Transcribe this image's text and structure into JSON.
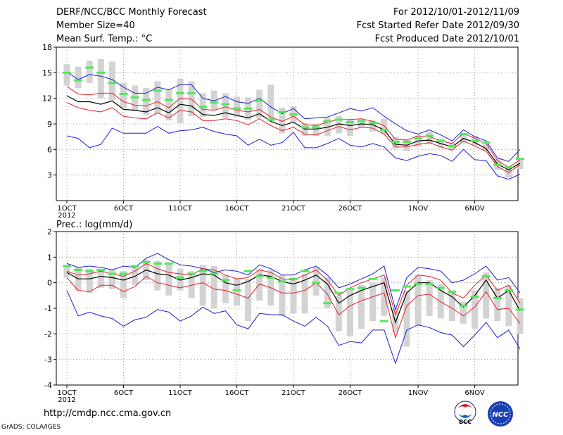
{
  "header": {
    "title": "DERF/NCC/BCC Monthly Forecast",
    "member_size": "Member Size=40",
    "variable": "Mean Surf. Temp.: °C",
    "forecast_period": "For 2012/10/01-2012/11/09",
    "fcst_started": "Fcst Started Refer Date 2012/09/30",
    "fcst_produced": "Fcst Produced Date 2012/10/01"
  },
  "footer": {
    "url": "http://cmdp.ncc.cma.gov.cn",
    "credit": "GrADS: COLA/IGES",
    "logo_bcc": "BCC",
    "logo_ncc": "NCC"
  },
  "colors": {
    "box": "#d3d3d3",
    "median": "#52e85a",
    "mean": "#000000",
    "inner": "#e8202a",
    "outer": "#1c1cd8",
    "grid": "#8a8a8a"
  },
  "chart_data": [
    {
      "type": "line",
      "title": "Mean Surf. Temp.: °C",
      "xlim": [
        0,
        39
      ],
      "ylim": [
        0,
        18
      ],
      "yticks": [
        3,
        6,
        9,
        12,
        15,
        18
      ],
      "xticks": [
        {
          "day": 0,
          "label": "1OCT",
          "sub": "2012"
        },
        {
          "day": 5,
          "label": "6OCT"
        },
        {
          "day": 10,
          "label": "11OCT"
        },
        {
          "day": 15,
          "label": "16OCT"
        },
        {
          "day": 20,
          "label": "21OCT"
        },
        {
          "day": 25,
          "label": "26OCT"
        },
        {
          "day": 31,
          "label": "1NOV"
        },
        {
          "day": 36,
          "label": "6NOV"
        }
      ],
      "series": [
        {
          "name": "outer_upper",
          "values": [
            15.1,
            14.2,
            14.8,
            14.6,
            14.2,
            13.3,
            12.6,
            12.6,
            13.3,
            13.0,
            13.6,
            13.6,
            12.0,
            11.7,
            12.2,
            11.6,
            11.4,
            12.0,
            11.0,
            10.2,
            10.8,
            9.6,
            9.7,
            9.8,
            10.3,
            10.8,
            10.5,
            10.9,
            9.9,
            9.0,
            8.2,
            7.8,
            8.3,
            7.7,
            7.0,
            8.3,
            7.5,
            7.0,
            5.0,
            4.6,
            6.0
          ]
        },
        {
          "name": "inner_upper",
          "values": [
            13.4,
            12.5,
            12.4,
            12.6,
            12.6,
            11.6,
            11.2,
            11.1,
            11.6,
            10.9,
            12.0,
            11.9,
            10.7,
            10.6,
            11.0,
            10.6,
            10.4,
            10.7,
            9.8,
            9.3,
            9.9,
            8.9,
            8.8,
            9.2,
            9.5,
            9.5,
            9.6,
            9.3,
            8.8,
            7.2,
            7.1,
            7.6,
            7.5,
            7.0,
            6.7,
            7.9,
            7.3,
            6.7,
            4.7,
            3.9,
            4.8
          ]
        },
        {
          "name": "mean",
          "values": [
            12.3,
            11.6,
            11.6,
            11.3,
            11.7,
            10.7,
            10.6,
            10.4,
            10.9,
            10.3,
            11.3,
            11.1,
            10.1,
            10.0,
            10.3,
            10.0,
            9.7,
            10.2,
            9.3,
            8.8,
            9.2,
            8.4,
            8.4,
            8.6,
            9.0,
            8.8,
            9.0,
            8.9,
            8.3,
            6.6,
            6.5,
            7.0,
            7.1,
            6.7,
            6.3,
            7.3,
            6.8,
            6.1,
            4.3,
            3.6,
            4.4
          ]
        },
        {
          "name": "inner_lower",
          "values": [
            11.5,
            10.9,
            10.6,
            10.4,
            10.9,
            9.9,
            9.7,
            9.6,
            10.3,
            9.7,
            10.6,
            10.4,
            9.4,
            9.4,
            9.6,
            9.4,
            8.9,
            9.6,
            8.8,
            8.2,
            8.6,
            7.8,
            7.7,
            8.2,
            8.7,
            8.3,
            8.6,
            8.5,
            7.8,
            6.3,
            6.3,
            6.6,
            6.8,
            6.3,
            5.9,
            7.0,
            6.4,
            5.8,
            4.0,
            3.3,
            4.2
          ]
        },
        {
          "name": "outer_lower",
          "values": [
            7.6,
            7.3,
            6.2,
            6.6,
            8.5,
            7.9,
            7.9,
            7.9,
            8.7,
            7.9,
            8.2,
            8.3,
            8.6,
            8.1,
            7.8,
            7.6,
            6.5,
            7.2,
            6.5,
            6.8,
            8.0,
            6.2,
            6.2,
            6.7,
            7.3,
            6.5,
            6.3,
            6.7,
            6.3,
            5.0,
            4.7,
            5.2,
            5.5,
            5.3,
            4.6,
            6.0,
            4.8,
            4.7,
            2.9,
            2.5,
            3.1
          ]
        }
      ],
      "boxes": [
        [
          13.5,
          16.0
        ],
        [
          13.2,
          15.7
        ],
        [
          13.8,
          16.4
        ],
        [
          12.0,
          16.6
        ],
        [
          11.8,
          16.3
        ],
        [
          10.9,
          13.8
        ],
        [
          10.5,
          13.5
        ],
        [
          10.0,
          13.2
        ],
        [
          10.2,
          14.0
        ],
        [
          9.4,
          13.0
        ],
        [
          9.1,
          14.3
        ],
        [
          9.9,
          14.0
        ],
        [
          9.8,
          12.6
        ],
        [
          10.6,
          12.9
        ],
        [
          9.7,
          12.6
        ],
        [
          9.8,
          12.2
        ],
        [
          9.5,
          12.1
        ],
        [
          9.7,
          13.0
        ],
        [
          9.3,
          13.6
        ],
        [
          7.9,
          10.9
        ],
        [
          9.2,
          11.1
        ],
        [
          7.6,
          9.1
        ],
        [
          7.6,
          9.0
        ],
        [
          7.6,
          9.7
        ],
        [
          7.9,
          9.9
        ],
        [
          7.6,
          9.6
        ],
        [
          8.6,
          9.6
        ],
        [
          8.1,
          9.4
        ],
        [
          7.8,
          9.6
        ],
        [
          6.1,
          7.5
        ],
        [
          5.8,
          7.2
        ],
        [
          6.3,
          7.6
        ],
        [
          6.6,
          8.1
        ],
        [
          6.2,
          7.3
        ],
        [
          5.9,
          6.8
        ],
        [
          6.7,
          7.9
        ],
        [
          6.5,
          7.6
        ],
        [
          5.8,
          6.6
        ],
        [
          3.6,
          4.9
        ],
        [
          2.7,
          4.0
        ],
        [
          3.7,
          5.0
        ]
      ],
      "medians": [
        15.0,
        14.1,
        15.6,
        15.0,
        13.8,
        12.5,
        12.1,
        11.8,
        12.9,
        11.8,
        12.6,
        12.6,
        11.0,
        11.5,
        11.3,
        10.8,
        10.8,
        11.7,
        9.5,
        10.4,
        10.1,
        8.6,
        8.6,
        9.3,
        9.5,
        9.2,
        9.3,
        9.1,
        8.3,
        6.9,
        6.9,
        7.3,
        7.6,
        7.0,
        6.4,
        7.8,
        7.0,
        6.8,
        4.2,
        3.9,
        4.9
      ]
    },
    {
      "type": "line",
      "title": "Prec.: log(mm/d)",
      "xlim": [
        0,
        39
      ],
      "ylim": [
        -4,
        2
      ],
      "yticks": [
        -4,
        -3,
        -2,
        -1,
        0,
        1,
        2
      ],
      "xticks": [
        {
          "day": 0,
          "label": "1OCT",
          "sub": "2012"
        },
        {
          "day": 5,
          "label": "6OCT"
        },
        {
          "day": 10,
          "label": "11OCT"
        },
        {
          "day": 15,
          "label": "16OCT"
        },
        {
          "day": 20,
          "label": "21OCT"
        },
        {
          "day": 25,
          "label": "26OCT"
        },
        {
          "day": 31,
          "label": "1NOV"
        },
        {
          "day": 36,
          "label": "6NOV"
        }
      ],
      "series": [
        {
          "name": "outer_upper",
          "values": [
            0.75,
            0.6,
            0.65,
            0.6,
            0.5,
            0.65,
            0.6,
            0.95,
            1.15,
            0.9,
            0.7,
            0.65,
            0.55,
            0.4,
            0.5,
            0.45,
            0.3,
            0.7,
            0.55,
            0.3,
            0.3,
            0.5,
            0.65,
            0.3,
            -0.2,
            -0.05,
            0.15,
            0.35,
            0.65,
            -1.05,
            0.2,
            0.6,
            0.55,
            0.45,
            0.0,
            0.1,
            0.35,
            0.65,
            0.1,
            0.2,
            -0.4
          ]
        },
        {
          "name": "inner_upper",
          "values": [
            0.45,
            0.3,
            0.35,
            0.45,
            0.35,
            0.25,
            0.45,
            0.75,
            0.55,
            0.4,
            0.35,
            0.3,
            0.55,
            0.5,
            0.3,
            0.15,
            0.2,
            0.5,
            0.4,
            0.15,
            0.1,
            0.3,
            0.5,
            0.1,
            -0.5,
            -0.2,
            0.0,
            0.15,
            0.3,
            -1.25,
            -0.1,
            0.3,
            0.25,
            0.1,
            -0.4,
            -0.6,
            -0.1,
            0.3,
            -0.3,
            -0.1,
            -0.8
          ]
        },
        {
          "name": "mean",
          "values": [
            0.4,
            0.15,
            0.15,
            0.25,
            0.2,
            0.1,
            0.25,
            0.5,
            0.35,
            0.3,
            0.1,
            0.2,
            0.35,
            0.3,
            0.0,
            -0.1,
            0.05,
            0.3,
            0.25,
            0.05,
            -0.05,
            0.1,
            0.3,
            -0.05,
            -0.8,
            -0.5,
            -0.3,
            -0.15,
            0.0,
            -1.55,
            -0.4,
            0.0,
            0.0,
            -0.3,
            -0.55,
            -0.95,
            -0.5,
            0.1,
            -0.6,
            -0.3,
            -1.1
          ]
        },
        {
          "name": "inner_lower",
          "values": [
            0.2,
            -0.3,
            -0.35,
            -0.1,
            -0.1,
            -0.35,
            -0.15,
            0.25,
            0.0,
            -0.1,
            -0.2,
            -0.1,
            0.0,
            -0.25,
            -0.3,
            -0.45,
            -0.6,
            -0.05,
            -0.2,
            -0.4,
            -0.4,
            -0.3,
            0.0,
            -0.45,
            -1.25,
            -0.9,
            -0.7,
            -0.55,
            -0.4,
            -2.15,
            -0.9,
            -0.5,
            -0.45,
            -0.75,
            -1.0,
            -1.3,
            -0.95,
            -0.35,
            -1.05,
            -1.0,
            -1.6
          ]
        },
        {
          "name": "outer_lower",
          "values": [
            -0.3,
            -1.3,
            -1.15,
            -1.3,
            -1.4,
            -1.7,
            -1.45,
            -1.35,
            -1.05,
            -1.15,
            -1.5,
            -1.3,
            -0.95,
            -1.2,
            -1.1,
            -1.65,
            -1.8,
            -1.2,
            -1.25,
            -1.25,
            -1.5,
            -1.7,
            -1.35,
            -1.7,
            -2.45,
            -2.3,
            -2.35,
            -1.85,
            -1.85,
            -3.15,
            -1.85,
            -1.65,
            -1.75,
            -1.95,
            -2.05,
            -2.5,
            -2.05,
            -1.55,
            -2.15,
            -1.85,
            -2.6
          ]
        }
      ],
      "boxes": [
        [
          0.2,
          0.7
        ],
        [
          -0.3,
          0.6
        ],
        [
          -0.4,
          0.55
        ],
        [
          -0.2,
          0.5
        ],
        [
          -0.25,
          0.5
        ],
        [
          -0.6,
          0.45
        ],
        [
          -0.1,
          0.6
        ],
        [
          0.1,
          0.9
        ],
        [
          -0.3,
          0.85
        ],
        [
          -0.5,
          0.75
        ],
        [
          -0.3,
          0.55
        ],
        [
          -0.6,
          0.45
        ],
        [
          -0.9,
          0.7
        ],
        [
          -1.0,
          0.65
        ],
        [
          -0.8,
          0.3
        ],
        [
          -0.9,
          0.2
        ],
        [
          -1.5,
          0.15
        ],
        [
          -0.7,
          0.55
        ],
        [
          -0.9,
          0.5
        ],
        [
          -1.3,
          0.3
        ],
        [
          -1.2,
          0.2
        ],
        [
          -1.2,
          0.35
        ],
        [
          -0.5,
          0.6
        ],
        [
          -1.0,
          0.2
        ],
        [
          -1.9,
          -0.5
        ],
        [
          -2.1,
          -0.3
        ],
        [
          -1.8,
          -0.1
        ],
        [
          -1.5,
          0.0
        ],
        [
          -1.3,
          0.2
        ],
        [
          -1.95,
          -1.0
        ],
        [
          -2.5,
          -0.3
        ],
        [
          -1.7,
          0.3
        ],
        [
          -1.3,
          0.1
        ],
        [
          -1.4,
          -0.05
        ],
        [
          -1.5,
          -0.3
        ],
        [
          -1.6,
          -0.75
        ],
        [
          -1.8,
          -0.3
        ],
        [
          -1.4,
          0.4
        ],
        [
          -1.5,
          -0.2
        ],
        [
          -1.7,
          -0.1
        ],
        [
          -2.0,
          -0.6
        ]
      ],
      "medians": [
        0.65,
        0.5,
        0.45,
        0.5,
        0.35,
        0.35,
        0.65,
        0.8,
        0.75,
        0.75,
        0.2,
        0.35,
        0.45,
        0.35,
        0.1,
        -0.3,
        0.45,
        0.25,
        0.2,
        0.05,
        0.15,
        0.45,
        0.0,
        -0.8,
        -0.4,
        -0.25,
        -0.2,
        0.15,
        -1.5,
        -0.3,
        -0.15,
        -0.05,
        -0.05,
        -0.2,
        -0.35,
        -0.9,
        -0.55,
        0.25,
        -0.6,
        -0.3,
        -1.05
      ]
    }
  ]
}
